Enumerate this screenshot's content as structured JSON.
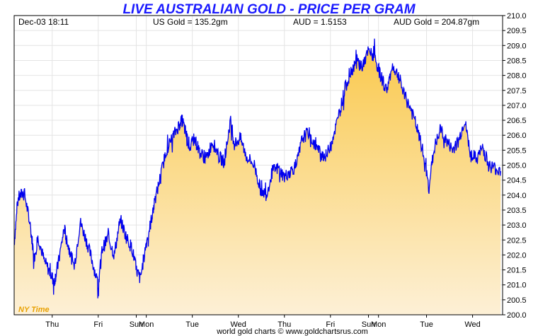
{
  "chart_data": {
    "type": "area",
    "title": "LIVE AUSTRALIAN GOLD - PRICE PER GRAM",
    "info": {
      "datetime": "Dec-03  18:11",
      "us_gold": "US Gold = 135.2gm",
      "aud": "AUD = 1.5153",
      "aud_gold": "AUD Gold = 204.87gm"
    },
    "ylim": [
      200.0,
      210.0
    ],
    "y_ticks": [
      "200.0",
      "200.5",
      "201.0",
      "201.5",
      "202.0",
      "202.5",
      "203.0",
      "203.5",
      "204.0",
      "204.5",
      "205.0",
      "205.5",
      "206.0",
      "206.5",
      "207.0",
      "207.5",
      "208.0",
      "208.5",
      "209.0",
      "209.5",
      "210.0"
    ],
    "x_ticks": [
      {
        "label": "Thu",
        "x": 1.9
      },
      {
        "label": "Fri",
        "x": 4.2
      },
      {
        "label": "Sun",
        "x": 6.1
      },
      {
        "label": "Mon",
        "x": 6.6
      },
      {
        "label": "Tue",
        "x": 8.9
      },
      {
        "label": "Wed",
        "x": 11.2
      },
      {
        "label": "Thu",
        "x": 13.5
      },
      {
        "label": "Fri",
        "x": 15.8
      },
      {
        "label": "Sun",
        "x": 17.7
      },
      {
        "label": "Mon",
        "x": 18.2
      },
      {
        "label": "Tue",
        "x": 20.6
      },
      {
        "label": "Wed",
        "x": 22.9
      }
    ],
    "xlim": [
      0,
      24.4
    ],
    "grid": true,
    "timezone_label": "NY Time",
    "footer": "world gold charts © www.goldchartsrus.com",
    "series": [
      {
        "color": "#0000ee",
        "x": [
          0.0,
          0.2,
          0.5,
          0.8,
          1.0,
          1.2,
          1.5,
          1.8,
          2.0,
          2.2,
          2.5,
          2.7,
          3.0,
          3.3,
          3.6,
          3.9,
          4.2,
          4.4,
          4.7,
          5.0,
          5.3,
          5.6,
          5.9,
          6.1,
          6.3,
          6.6,
          6.8,
          7.0,
          7.3,
          7.6,
          7.9,
          8.2,
          8.4,
          8.6,
          8.8,
          9.0,
          9.3,
          9.6,
          9.9,
          10.2,
          10.5,
          10.8,
          11.0,
          11.3,
          11.6,
          12.0,
          12.3,
          12.6,
          12.9,
          13.2,
          13.5,
          13.8,
          14.1,
          14.4,
          14.7,
          15.0,
          15.3,
          15.6,
          15.9,
          16.2,
          16.5,
          16.8,
          17.1,
          17.4,
          17.7,
          18.0,
          18.3,
          18.6,
          18.9,
          19.2,
          19.5,
          19.8,
          20.1,
          20.4,
          20.7,
          21.0,
          21.3,
          21.6,
          21.9,
          22.2,
          22.5,
          22.8,
          23.1,
          23.4,
          23.7,
          24.0,
          24.3
        ],
        "y": [
          202.4,
          203.9,
          204.1,
          203.0,
          201.9,
          202.6,
          201.8,
          201.4,
          201.1,
          201.7,
          202.9,
          202.3,
          201.6,
          203.1,
          202.5,
          201.8,
          201.0,
          202.2,
          202.6,
          202.0,
          203.2,
          202.6,
          202.2,
          201.5,
          201.2,
          202.4,
          203.0,
          203.7,
          204.6,
          205.5,
          205.9,
          206.3,
          206.5,
          206.0,
          205.6,
          205.9,
          205.4,
          205.2,
          205.8,
          205.3,
          205.1,
          206.5,
          205.7,
          205.9,
          205.3,
          205.0,
          204.2,
          204.0,
          204.8,
          204.9,
          204.6,
          204.8,
          205.0,
          205.9,
          206.1,
          205.7,
          205.4,
          205.3,
          205.9,
          206.6,
          207.5,
          208.1,
          208.5,
          208.3,
          208.8,
          208.6,
          208.0,
          207.5,
          208.3,
          208.0,
          207.3,
          206.9,
          206.3,
          205.5,
          204.3,
          205.6,
          206.2,
          205.8,
          205.5,
          205.8,
          206.5,
          205.4,
          205.2,
          205.6,
          205.0,
          204.9,
          204.8
        ]
      }
    ]
  }
}
